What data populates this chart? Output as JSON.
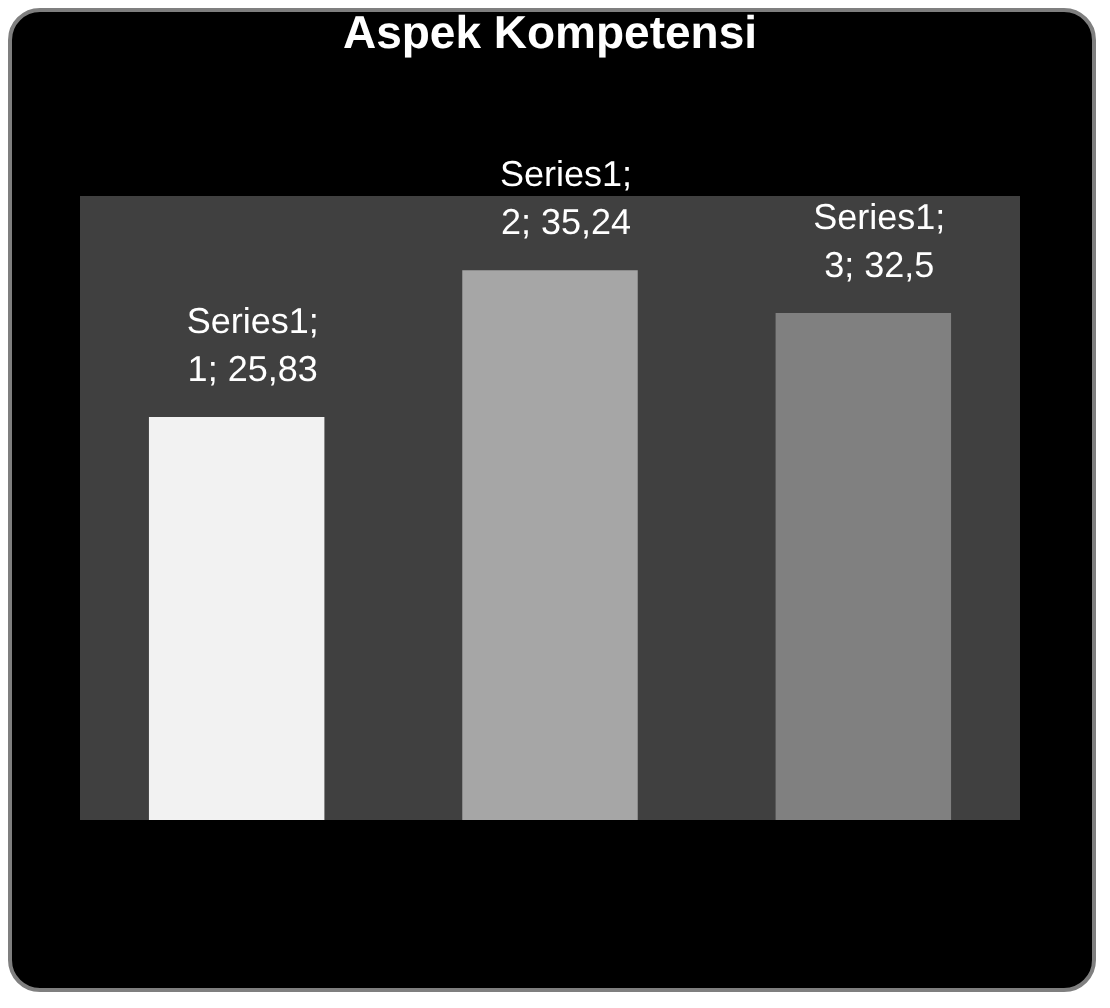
{
  "chart_data": {
    "type": "bar",
    "title": "Aspek Kompetensi",
    "categories": [
      null,
      null,
      null
    ],
    "values": [
      25.83,
      35.24,
      32.5
    ],
    "colors": [
      "#f2f2f2",
      "#a6a6a6",
      "#808080"
    ],
    "value_labels": [
      "Series1; 1; 25,83",
      "Series1; 2; 35,24",
      "Series1; 3; 32,5"
    ],
    "ylim": [
      0,
      40
    ],
    "tick_labels": false
  }
}
